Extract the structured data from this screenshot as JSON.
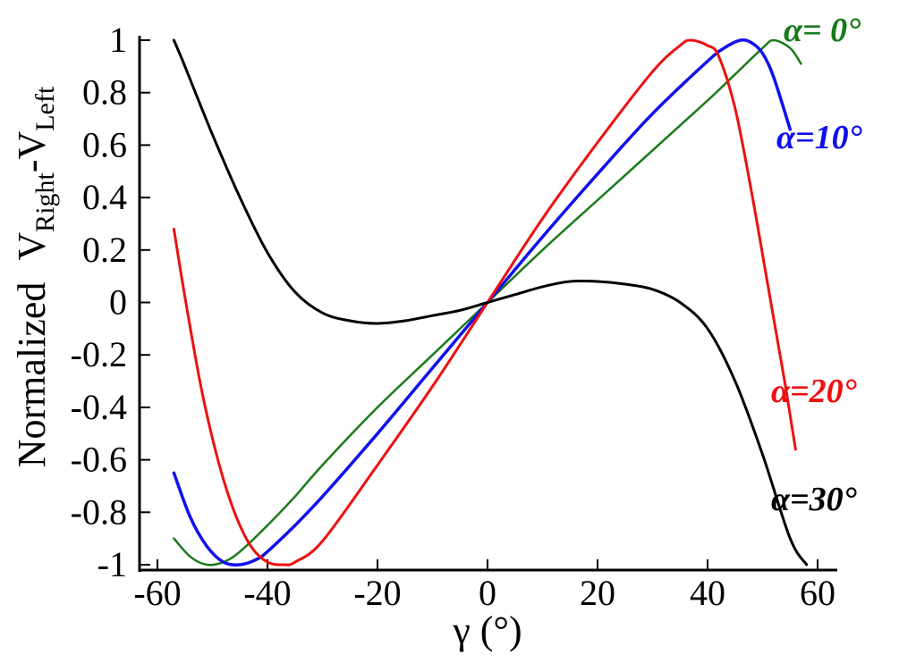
{
  "chart_data": {
    "type": "line",
    "xlabel": "γ (°)",
    "ylabel": {
      "prefix": "Normalized",
      "v1": "V",
      "sub1": "Right",
      "dash": "-",
      "v2": "V",
      "sub2": "Left"
    },
    "xlim": [
      -60,
      60
    ],
    "ylim": [
      -1,
      1
    ],
    "x_ticks": [
      -60,
      -40,
      -20,
      0,
      20,
      40,
      60
    ],
    "x_tick_labels": [
      "-60",
      "-40",
      "-20",
      "0",
      "20",
      "40",
      "60"
    ],
    "y_ticks": [
      1,
      0.8,
      0.6,
      0.4,
      0.2,
      0,
      -0.2,
      -0.4,
      -0.6,
      -0.8,
      -1
    ],
    "y_tick_labels": [
      "1",
      "0.8",
      "0.6",
      "0.4",
      "0.2",
      "0",
      "-0.2",
      "-0.4",
      "-0.6",
      "-0.8",
      "-1"
    ],
    "grid": false,
    "legend": "inline labels at right",
    "series": [
      {
        "name": "α= 0°",
        "color": "#1a7a1a",
        "x": [
          -57,
          -54,
          -51,
          -48,
          -45,
          -40,
          -35,
          -30,
          -20,
          -10,
          0,
          10,
          20,
          30,
          40,
          45,
          50,
          52,
          55,
          57
        ],
        "y": [
          -0.9,
          -0.97,
          -1.0,
          -0.99,
          -0.95,
          -0.85,
          -0.74,
          -0.62,
          -0.4,
          -0.2,
          0.0,
          0.2,
          0.39,
          0.58,
          0.77,
          0.87,
          0.97,
          1.0,
          0.97,
          0.91
        ]
      },
      {
        "name": "α=10°",
        "color": "#1010ee",
        "x": [
          -57,
          -54,
          -51,
          -48,
          -45,
          -42,
          -40,
          -35,
          -30,
          -20,
          -10,
          0,
          10,
          20,
          30,
          40,
          43,
          46,
          48,
          50,
          52,
          55
        ],
        "y": [
          -0.65,
          -0.82,
          -0.93,
          -0.99,
          -1.0,
          -0.98,
          -0.95,
          -0.85,
          -0.74,
          -0.5,
          -0.25,
          0.0,
          0.25,
          0.49,
          0.72,
          0.92,
          0.97,
          1.0,
          0.99,
          0.95,
          0.86,
          0.66
        ]
      },
      {
        "name": "α=20°",
        "color": "#ee1010",
        "x": [
          -57,
          -55,
          -52,
          -49,
          -46,
          -43,
          -40,
          -37,
          -35,
          -30,
          -20,
          -10,
          0,
          10,
          20,
          30,
          35,
          37,
          40,
          42,
          45,
          48,
          51,
          54,
          56
        ],
        "y": [
          0.28,
          0.02,
          -0.33,
          -0.6,
          -0.8,
          -0.93,
          -0.99,
          -1.0,
          -0.99,
          -0.91,
          -0.62,
          -0.32,
          0.0,
          0.32,
          0.61,
          0.88,
          0.98,
          1.0,
          0.98,
          0.94,
          0.74,
          0.42,
          0.06,
          -0.3,
          -0.56
        ]
      },
      {
        "name": "α=30°",
        "color": "#000000",
        "x": [
          -57,
          -55,
          -50,
          -45,
          -40,
          -35,
          -30,
          -25,
          -20,
          -15,
          -10,
          -5,
          0,
          5,
          10,
          15,
          20,
          25,
          30,
          35,
          40,
          45,
          50,
          55,
          58
        ],
        "y": [
          1.0,
          0.9,
          0.64,
          0.4,
          0.19,
          0.04,
          -0.04,
          -0.07,
          -0.08,
          -0.07,
          -0.05,
          -0.03,
          0.0,
          0.03,
          0.06,
          0.08,
          0.08,
          0.07,
          0.05,
          0.0,
          -0.1,
          -0.3,
          -0.58,
          -0.9,
          -1.0
        ]
      }
    ]
  }
}
